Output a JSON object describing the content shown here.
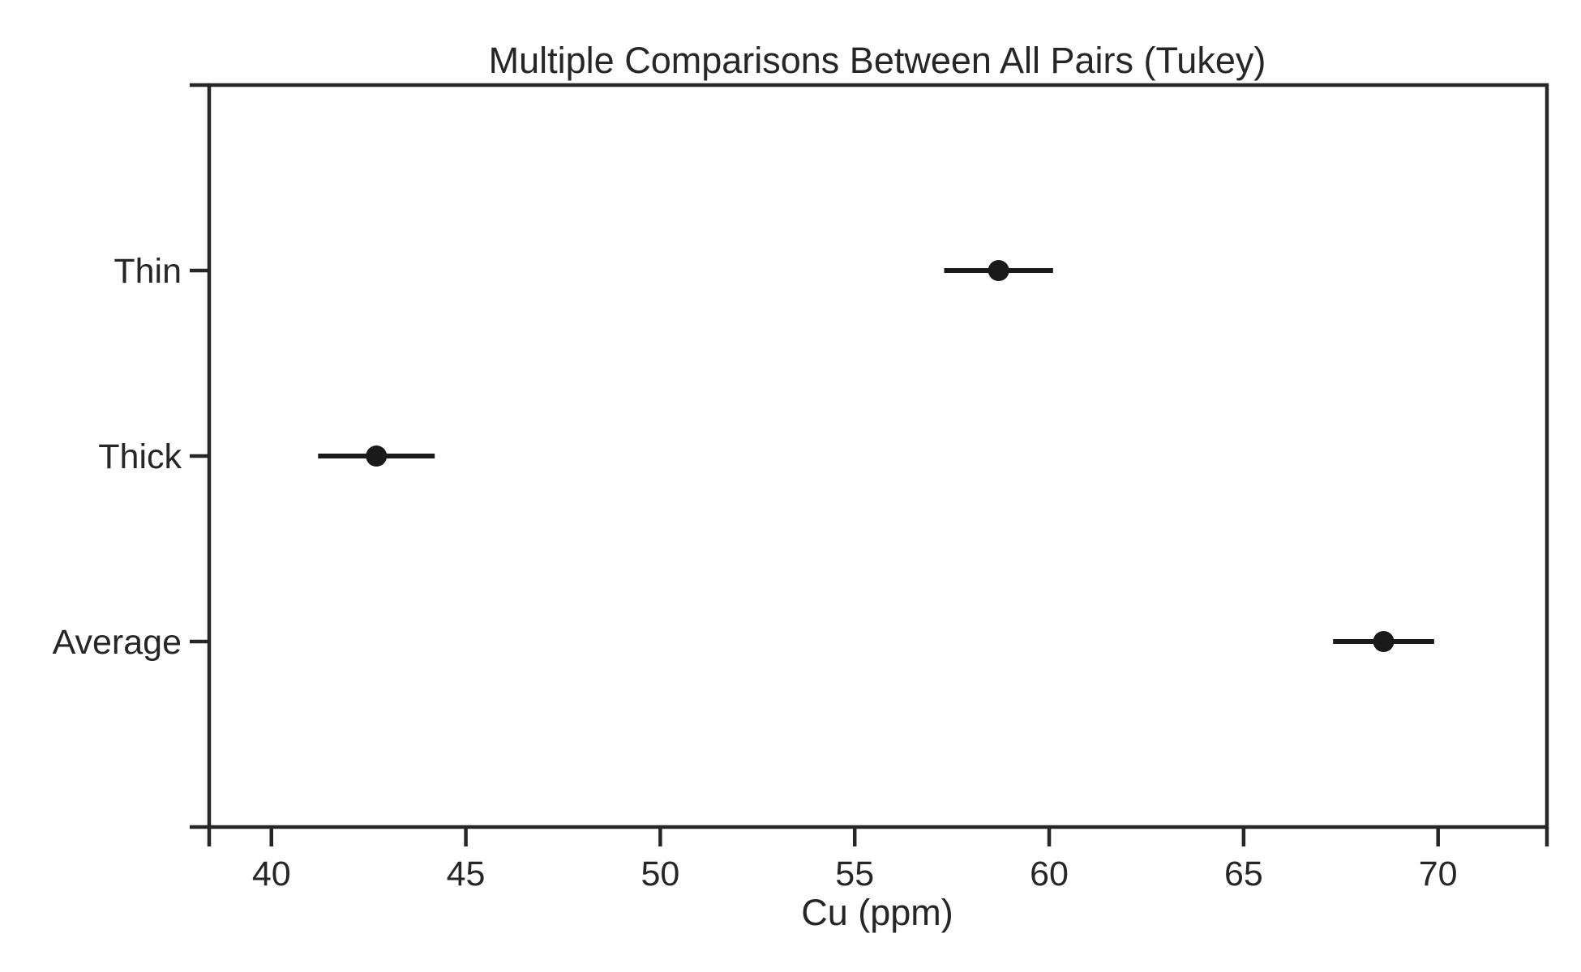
{
  "chart_data": {
    "type": "scatter",
    "title": "Multiple Comparisons Between All Pairs (Tukey)",
    "xlabel": "Cu (ppm)",
    "ylabel": "",
    "xlim": [
      38.4,
      72.8
    ],
    "xticks": [
      40,
      45,
      50,
      55,
      60,
      65,
      70
    ],
    "xtick_labels": [
      "40",
      "45",
      "50",
      "55",
      "60",
      "65",
      "70"
    ],
    "categories": [
      "Thin",
      "Thick",
      "Average"
    ],
    "series": [
      {
        "points": [
          {
            "category": "Thin",
            "mean": 58.7,
            "lower": 57.3,
            "upper": 60.1
          },
          {
            "category": "Thick",
            "mean": 42.7,
            "lower": 41.2,
            "upper": 44.2
          },
          {
            "category": "Average",
            "mean": 68.6,
            "lower": 67.3,
            "upper": 69.9
          }
        ]
      }
    ],
    "grid": false,
    "color": "#1a1a1a"
  }
}
